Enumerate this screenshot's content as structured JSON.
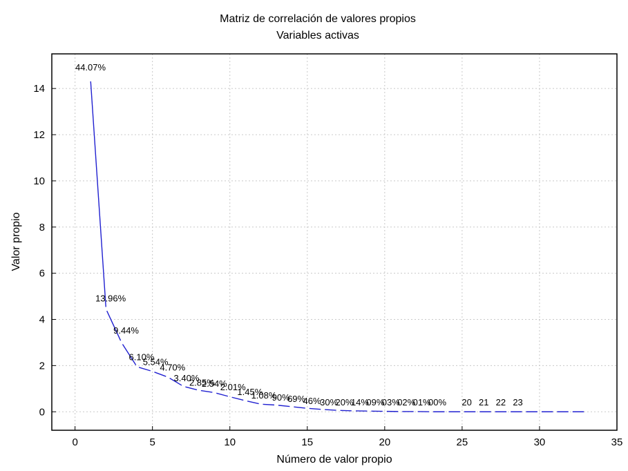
{
  "chart_data": {
    "type": "line",
    "title": "Matriz de correlación de valores propios",
    "subtitle": "Variables activas",
    "xlabel": "Número de valor propio",
    "ylabel": "Valor propio",
    "xlim": [
      -1.5,
      35
    ],
    "ylim": [
      -0.8,
      15.5
    ],
    "xticks": [
      0,
      5,
      10,
      15,
      20,
      25,
      30,
      35
    ],
    "yticks": [
      0,
      2,
      4,
      6,
      8,
      10,
      12,
      14
    ],
    "grid": true,
    "legend": "none",
    "x": [
      1,
      2,
      3,
      4,
      5,
      6,
      7,
      8,
      9,
      10,
      11,
      12,
      13,
      14,
      15,
      16,
      17,
      18,
      19,
      20,
      21,
      22,
      23,
      24,
      25,
      26,
      27,
      28,
      29,
      30,
      31,
      32,
      33
    ],
    "values": [
      14.4,
      4.45,
      3.0,
      1.95,
      1.75,
      1.5,
      1.1,
      0.93,
      0.83,
      0.65,
      0.48,
      0.33,
      0.29,
      0.22,
      0.15,
      0.1,
      0.06,
      0.04,
      0.03,
      0.02,
      0.01,
      0.01,
      0.0,
      0.0,
      0.0,
      0.0,
      0.0,
      0.0,
      0.0,
      0.0,
      0.0,
      0.0,
      0.0
    ],
    "labels": [
      {
        "text": "44.07%",
        "x": 1,
        "y": 14.9
      },
      {
        "text": "13.96%",
        "x": 2.3,
        "y": 4.9
      },
      {
        "text": "9.44%",
        "x": 3.3,
        "y": 3.5
      },
      {
        "text": "6.10%",
        "x": 4.3,
        "y": 2.35
      },
      {
        "text": "5.54%",
        "x": 5.2,
        "y": 2.15
      },
      {
        "text": "4.70%",
        "x": 6.3,
        "y": 1.9
      },
      {
        "text": "3.40%",
        "x": 7.2,
        "y": 1.45
      },
      {
        "text": "2.85%",
        "x": 8.2,
        "y": 1.25
      },
      {
        "text": "2.54%",
        "x": 9.0,
        "y": 1.2
      },
      {
        "text": "2.01%",
        "x": 10.2,
        "y": 1.05
      },
      {
        "text": "1.45%",
        "x": 11.3,
        "y": 0.85
      },
      {
        "text": "1.08%",
        "x": 12.2,
        "y": 0.7
      },
      {
        "text": "90%",
        "x": 13.3,
        "y": 0.6
      },
      {
        "text": "69%",
        "x": 14.3,
        "y": 0.55
      },
      {
        "text": "46%",
        "x": 15.3,
        "y": 0.45
      },
      {
        "text": "30%",
        "x": 16.4,
        "y": 0.4
      },
      {
        "text": "20%",
        "x": 17.4,
        "y": 0.4
      },
      {
        "text": "14%",
        "x": 18.4,
        "y": 0.4
      },
      {
        "text": "09%",
        "x": 19.4,
        "y": 0.4
      },
      {
        "text": "03%",
        "x": 20.4,
        "y": 0.4
      },
      {
        "text": "02%",
        "x": 21.4,
        "y": 0.4
      },
      {
        "text": "01%",
        "x": 22.4,
        "y": 0.4
      },
      {
        "text": "00%",
        "x": 23.4,
        "y": 0.4
      },
      {
        "text": "20",
        "x": 25.3,
        "y": 0.4
      },
      {
        "text": "21",
        "x": 26.4,
        "y": 0.4
      },
      {
        "text": "22",
        "x": 27.5,
        "y": 0.4
      },
      {
        "text": "23",
        "x": 28.6,
        "y": 0.4
      }
    ],
    "series_color": "#1f1fd0"
  }
}
